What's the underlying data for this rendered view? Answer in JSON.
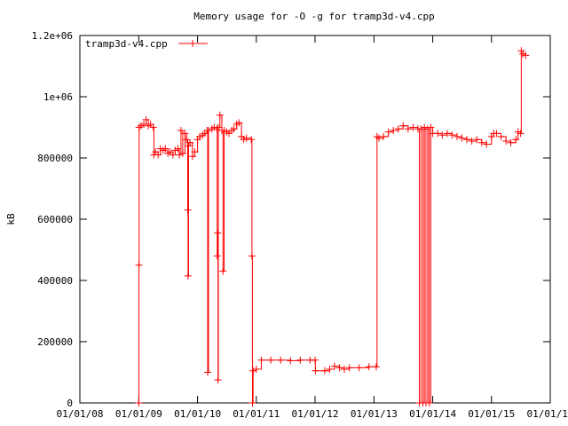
{
  "chart_data": {
    "type": "line",
    "title": "Memory usage for -O -g for tramp3d-v4.cpp",
    "xlabel": "",
    "ylabel": "kB",
    "ylim": [
      0,
      1200000
    ],
    "y_ticks": [
      0,
      200000,
      400000,
      600000,
      800000,
      1000000,
      1200000
    ],
    "y_tick_labels": [
      "0",
      "200000",
      "400000",
      "600000",
      "800000",
      "1e+06",
      "1.2e+06"
    ],
    "x_range": [
      "2008-01-01",
      "2016-01-01"
    ],
    "x_ticks": [
      "2008-01-01",
      "2009-01-01",
      "2010-01-01",
      "2011-01-01",
      "2012-01-01",
      "2013-01-01",
      "2014-01-01",
      "2015-01-01",
      "2016-01-01"
    ],
    "x_tick_labels": [
      "01/01/08",
      "01/01/09",
      "01/01/10",
      "01/01/11",
      "01/01/12",
      "01/01/13",
      "01/01/14",
      "01/01/15",
      "01/01/16"
    ],
    "legend_position": "top-left",
    "grid": false,
    "series": [
      {
        "name": "tramp3d-v4.cpp",
        "color": "#ff0000",
        "marker": "plus",
        "points": [
          [
            "2009-01-01",
            0
          ],
          [
            "2009-01-02",
            450000
          ],
          [
            "2009-01-03",
            900000
          ],
          [
            "2009-01-15",
            905000
          ],
          [
            "2009-02-01",
            910000
          ],
          [
            "2009-02-15",
            925000
          ],
          [
            "2009-03-01",
            905000
          ],
          [
            "2009-03-15",
            910000
          ],
          [
            "2009-04-01",
            900000
          ],
          [
            "2009-04-05",
            810000
          ],
          [
            "2009-04-15",
            820000
          ],
          [
            "2009-05-01",
            810000
          ],
          [
            "2009-05-15",
            830000
          ],
          [
            "2009-06-01",
            825000
          ],
          [
            "2009-06-15",
            830000
          ],
          [
            "2009-07-01",
            815000
          ],
          [
            "2009-07-15",
            820000
          ],
          [
            "2009-08-01",
            810000
          ],
          [
            "2009-08-15",
            825000
          ],
          [
            "2009-09-01",
            830000
          ],
          [
            "2009-09-10",
            810000
          ],
          [
            "2009-09-20",
            890000
          ],
          [
            "2009-10-01",
            815000
          ],
          [
            "2009-10-15",
            880000
          ],
          [
            "2009-10-25",
            860000
          ],
          [
            "2009-11-01",
            630000
          ],
          [
            "2009-11-03",
            415000
          ],
          [
            "2009-11-06",
            840000
          ],
          [
            "2009-11-15",
            850000
          ],
          [
            "2009-12-01",
            805000
          ],
          [
            "2009-12-15",
            820000
          ],
          [
            "2010-01-01",
            860000
          ],
          [
            "2010-01-15",
            870000
          ],
          [
            "2010-02-01",
            875000
          ],
          [
            "2010-02-15",
            880000
          ],
          [
            "2010-03-01",
            890000
          ],
          [
            "2010-03-05",
            100000
          ],
          [
            "2010-03-10",
            890000
          ],
          [
            "2010-04-01",
            895000
          ],
          [
            "2010-04-15",
            900000
          ],
          [
            "2010-05-01",
            895000
          ],
          [
            "2010-05-03",
            480000
          ],
          [
            "2010-05-06",
            555000
          ],
          [
            "2010-05-08",
            75000
          ],
          [
            "2010-05-10",
            900000
          ],
          [
            "2010-05-20",
            940000
          ],
          [
            "2010-06-01",
            890000
          ],
          [
            "2010-06-08",
            430000
          ],
          [
            "2010-06-15",
            890000
          ],
          [
            "2010-07-01",
            885000
          ],
          [
            "2010-07-15",
            880000
          ],
          [
            "2010-08-01",
            890000
          ],
          [
            "2010-08-15",
            895000
          ],
          [
            "2010-09-01",
            910000
          ],
          [
            "2010-09-15",
            915000
          ],
          [
            "2010-10-01",
            870000
          ],
          [
            "2010-10-15",
            860000
          ],
          [
            "2010-11-01",
            865000
          ],
          [
            "2010-12-01",
            860000
          ],
          [
            "2010-12-05",
            480000
          ],
          [
            "2010-12-08",
            0
          ],
          [
            "2010-12-12",
            105000
          ],
          [
            "2011-01-01",
            110000
          ],
          [
            "2011-02-01",
            140000
          ],
          [
            "2011-04-01",
            140000
          ],
          [
            "2011-06-01",
            140000
          ],
          [
            "2011-08-01",
            138000
          ],
          [
            "2011-10-01",
            140000
          ],
          [
            "2011-12-01",
            140000
          ],
          [
            "2012-01-01",
            140000
          ],
          [
            "2012-01-03",
            105000
          ],
          [
            "2012-03-01",
            105000
          ],
          [
            "2012-04-01",
            110000
          ],
          [
            "2012-05-01",
            120000
          ],
          [
            "2012-06-01",
            115000
          ],
          [
            "2012-07-01",
            110000
          ],
          [
            "2012-08-01",
            115000
          ],
          [
            "2012-10-01",
            115000
          ],
          [
            "2012-12-01",
            118000
          ],
          [
            "2013-01-15",
            118000
          ],
          [
            "2013-01-20",
            870000
          ],
          [
            "2013-02-01",
            865000
          ],
          [
            "2013-03-01",
            870000
          ],
          [
            "2013-04-01",
            885000
          ],
          [
            "2013-05-01",
            890000
          ],
          [
            "2013-06-01",
            895000
          ],
          [
            "2013-07-01",
            905000
          ],
          [
            "2013-08-01",
            895000
          ],
          [
            "2013-09-01",
            900000
          ],
          [
            "2013-10-01",
            895000
          ],
          [
            "2013-10-10",
            0
          ],
          [
            "2013-10-20",
            895000
          ],
          [
            "2013-11-01",
            0
          ],
          [
            "2013-11-10",
            900000
          ],
          [
            "2013-11-20",
            0
          ],
          [
            "2013-12-01",
            895000
          ],
          [
            "2013-12-10",
            0
          ],
          [
            "2013-12-20",
            900000
          ],
          [
            "2014-01-01",
            880000
          ],
          [
            "2014-02-01",
            880000
          ],
          [
            "2014-03-01",
            875000
          ],
          [
            "2014-04-01",
            880000
          ],
          [
            "2014-05-01",
            875000
          ],
          [
            "2014-06-01",
            870000
          ],
          [
            "2014-07-01",
            865000
          ],
          [
            "2014-08-01",
            860000
          ],
          [
            "2014-09-01",
            855000
          ],
          [
            "2014-10-01",
            860000
          ],
          [
            "2014-11-01",
            850000
          ],
          [
            "2014-12-01",
            845000
          ],
          [
            "2015-01-01",
            870000
          ],
          [
            "2015-01-15",
            880000
          ],
          [
            "2015-02-01",
            880000
          ],
          [
            "2015-03-01",
            870000
          ],
          [
            "2015-04-01",
            855000
          ],
          [
            "2015-05-01",
            850000
          ],
          [
            "2015-06-01",
            860000
          ],
          [
            "2015-06-15",
            885000
          ],
          [
            "2015-07-01",
            880000
          ],
          [
            "2015-07-05",
            1150000
          ],
          [
            "2015-07-15",
            1140000
          ],
          [
            "2015-08-01",
            1135000
          ]
        ]
      }
    ]
  }
}
